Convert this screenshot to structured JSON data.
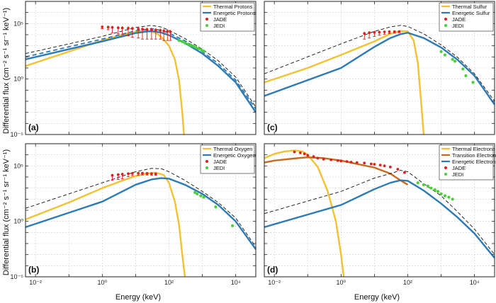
{
  "ylabel": "Differential flux (cm⁻² s⁻¹ sr⁻¹ keV⁻¹)",
  "xlabel": "Energy (keV)",
  "colors": {
    "thermal": "#f2c230",
    "energetic": "#2c7bb6",
    "transition": "#c8691e",
    "jade": "#e0201b",
    "jedi": "#46d234",
    "total": "#111111"
  },
  "chart_data": [
    {
      "type": "line",
      "panel_label": "(a)",
      "xlim": [
        0.005,
        40000
      ],
      "ylim": [
        1e-05,
        10000000
      ],
      "xscale": "log",
      "yscale": "log",
      "grid": true,
      "legend_position": "top-right",
      "x_tick_labels": [],
      "y_tick_labels": [
        {
          "value": 100000,
          "label": "10⁵"
        },
        {
          "value": 1,
          "label": "10⁰"
        },
        {
          "value": 1e-05,
          "label": "10⁻⁵"
        }
      ],
      "series": [
        {
          "name": "Thermal Protons",
          "kind": "thermal",
          "x": [
            0.005,
            0.1,
            1,
            5,
            10,
            20,
            40,
            60,
            100,
            150,
            200,
            250,
            280
          ],
          "y": [
            15,
            300,
            3000,
            12000,
            18000,
            22000,
            15000,
            6000,
            1000,
            60,
            0.8,
            0.001,
            1e-05
          ]
        },
        {
          "name": "Energetic Protons",
          "kind": "energetic",
          "x": [
            0.005,
            1,
            10,
            30,
            60,
            100,
            300,
            1000,
            3000,
            10000,
            40000
          ],
          "y": [
            60,
            2500,
            14000,
            22000,
            15000,
            9000,
            1800,
            200,
            15,
            0.5,
            0.001
          ]
        },
        {
          "name": "",
          "kind": "energetic-dashed",
          "x": [
            0.005,
            1,
            10,
            30,
            60,
            100,
            300,
            1000,
            3000,
            10000,
            40000
          ],
          "y": [
            100,
            4000,
            22000,
            35000,
            24000,
            14000,
            2800,
            300,
            25,
            0.8,
            0.002
          ]
        },
        {
          "name": "",
          "kind": "total",
          "x": [
            0.005,
            1,
            10,
            30,
            60,
            100,
            300,
            1000,
            3000,
            10000,
            40000
          ],
          "y": [
            200,
            7000,
            45000,
            70000,
            48000,
            25000,
            4500,
            500,
            45,
            1.5,
            0.003
          ]
        },
        {
          "name": "JADE",
          "kind": "jade",
          "x": [
            1,
            1.5,
            2,
            3,
            4,
            6,
            8,
            12,
            16,
            22,
            30,
            40,
            55,
            70,
            90,
            110
          ],
          "y": [
            50000,
            48000,
            45000,
            42000,
            40000,
            38000,
            36000,
            33000,
            31000,
            29000,
            28000,
            26000,
            24000,
            22000,
            20000,
            18000
          ],
          "err_low": [
            15000,
            20000,
            30000,
            30000,
            30000,
            30000,
            30000,
            28000,
            27000,
            25000,
            24000,
            22000,
            20000,
            19000,
            17000,
            15000
          ]
        },
        {
          "name": "JEDI",
          "kind": "jedi",
          "x": [
            200,
            250,
            300,
            380,
            450,
            550,
            650,
            800,
            950,
            1100
          ],
          "y": [
            3000,
            2400,
            1800,
            1400,
            1100,
            900,
            700,
            550,
            400,
            320
          ]
        }
      ]
    },
    {
      "type": "line",
      "panel_label": "(c)",
      "xlim": [
        0.005,
        40000
      ],
      "ylim": [
        1e-05,
        10000000
      ],
      "xscale": "log",
      "yscale": "log",
      "grid": true,
      "legend_position": "top-right",
      "x_tick_labels": [],
      "y_tick_labels": [],
      "series": [
        {
          "name": "Thermal Sulfur",
          "kind": "thermal",
          "x": [
            0.005,
            0.1,
            1,
            10,
            30,
            60,
            100,
            150,
            200,
            250,
            300
          ],
          "y": [
            0.5,
            10,
            150,
            2500,
            12000,
            22000,
            20000,
            3000,
            30,
            0.01,
            1e-05
          ]
        },
        {
          "name": "Energetic Sulfur",
          "kind": "energetic",
          "x": [
            0.005,
            1,
            10,
            30,
            60,
            100,
            300,
            1000,
            3000,
            10000,
            40000
          ],
          "y": [
            0.03,
            10,
            800,
            5000,
            11000,
            15000,
            5000,
            700,
            60,
            2,
            0.005
          ]
        },
        {
          "name": "",
          "kind": "total",
          "x": [
            0.005,
            1,
            10,
            30,
            60,
            100,
            300,
            1000,
            3000,
            10000,
            40000
          ],
          "y": [
            3,
            1500,
            20000,
            50000,
            70000,
            55000,
            12000,
            1200,
            100,
            3,
            0.01
          ]
        },
        {
          "name": "JADE",
          "kind": "jade",
          "x": [
            5,
            7,
            10,
            14,
            20,
            28,
            40,
            55
          ],
          "y": [
            13000,
            15000,
            16000,
            17000,
            18000,
            18500,
            19000,
            19000
          ],
          "err_low": [
            9000,
            10000,
            9000,
            8000,
            7000,
            6000,
            5000,
            4000
          ]
        },
        {
          "name": "JEDI",
          "kind": "jedi",
          "x": [
            1000,
            1300,
            2200,
            2600,
            4500,
            5500,
            9000
          ],
          "y": [
            300,
            150,
            60,
            40,
            8,
            2,
            0.5
          ]
        }
      ]
    },
    {
      "type": "line",
      "panel_label": "(b)",
      "xlim": [
        0.005,
        40000
      ],
      "ylim": [
        1e-05,
        10000000
      ],
      "xscale": "log",
      "yscale": "log",
      "grid": true,
      "legend_position": "top-right",
      "x_tick_labels": [
        {
          "value": 0.01,
          "label": "10⁻²"
        },
        {
          "value": 1,
          "label": "10⁰"
        },
        {
          "value": 100,
          "label": "10²"
        },
        {
          "value": 10000,
          "label": "10⁴"
        }
      ],
      "y_tick_labels": [
        {
          "value": 100000,
          "label": "10⁵"
        },
        {
          "value": 1,
          "label": "10⁰"
        },
        {
          "value": 1e-05,
          "label": "10⁻⁵"
        }
      ],
      "series": [
        {
          "name": "Thermal Oxygen",
          "kind": "thermal",
          "x": [
            0.005,
            0.1,
            1,
            5,
            10,
            20,
            40,
            70,
            100,
            150,
            200,
            250,
            300
          ],
          "y": [
            1.5,
            50,
            1000,
            6000,
            12000,
            20000,
            25000,
            15000,
            3000,
            60,
            0.5,
            0.001,
            1e-05
          ]
        },
        {
          "name": "Energetic Oxygen",
          "kind": "energetic",
          "x": [
            0.005,
            1,
            10,
            30,
            60,
            100,
            300,
            1000,
            3000,
            10000,
            40000
          ],
          "y": [
            0.3,
            60,
            2000,
            6000,
            8000,
            7000,
            2000,
            300,
            30,
            1,
            0.003
          ]
        },
        {
          "name": "",
          "kind": "total",
          "x": [
            0.005,
            1,
            10,
            30,
            60,
            100,
            300,
            1000,
            3000,
            10000,
            40000
          ],
          "y": [
            15,
            3000,
            30000,
            60000,
            55000,
            30000,
            5000,
            500,
            50,
            2,
            0.005
          ]
        },
        {
          "name": "JADE",
          "kind": "jade",
          "x": [
            2,
            3,
            4,
            6,
            8,
            12,
            16,
            22,
            30,
            40
          ],
          "y": [
            14000,
            16000,
            18000,
            20000,
            21000,
            22000,
            22000,
            21000,
            20000,
            19000
          ],
          "err_low": [
            9000,
            10000,
            11000,
            9000,
            8000,
            8000,
            7000,
            6000,
            6000,
            5000
          ]
        },
        {
          "name": "JEDI",
          "kind": "jedi",
          "x": [
            600,
            700,
            900,
            1100,
            2500,
            8000
          ],
          "y": [
            400,
            300,
            200,
            150,
            20,
            0.4
          ]
        }
      ]
    },
    {
      "type": "line",
      "panel_label": "(d)",
      "xlim": [
        0.005,
        40000
      ],
      "ylim": [
        1e-05,
        10000000
      ],
      "xscale": "log",
      "yscale": "log",
      "grid": true,
      "legend_position": "top-right",
      "x_tick_labels": [
        {
          "value": 0.01,
          "label": "10⁻²"
        },
        {
          "value": 1,
          "label": "10⁰"
        },
        {
          "value": 100,
          "label": "10²"
        },
        {
          "value": 10000,
          "label": "10⁴"
        }
      ],
      "y_tick_labels": [],
      "series": [
        {
          "name": "Thermal Electrons",
          "kind": "thermal",
          "x": [
            0.005,
            0.01,
            0.02,
            0.04,
            0.07,
            0.1,
            0.2,
            0.4,
            0.7,
            1,
            1.2
          ],
          "y": [
            500000,
            1200000,
            2000000,
            2500000,
            2000000,
            1000000,
            80000,
            500,
            1,
            0.001,
            1e-05
          ]
        },
        {
          "name": "Transition Electrons",
          "kind": "transition",
          "x": [
            0.005,
            0.01,
            0.05,
            0.1,
            0.3,
            1,
            3,
            10,
            30,
            60,
            100
          ],
          "y": [
            200000,
            300000,
            500000,
            600000,
            500000,
            300000,
            150000,
            70000,
            20000,
            5000,
            2000
          ]
        },
        {
          "name": "Energetic Electrons",
          "kind": "energetic",
          "x": [
            0.005,
            1,
            10,
            30,
            60,
            100,
            300,
            1000,
            3000,
            10000,
            40000
          ],
          "y": [
            0.3,
            30,
            800,
            3000,
            5000,
            4500,
            600,
            40,
            2.5,
            0.08,
            0.0005
          ]
        },
        {
          "name": "",
          "kind": "total",
          "x": [
            0.005,
            1,
            10,
            30,
            60,
            100,
            300,
            1000,
            3000,
            10000,
            40000
          ],
          "y": [
            5,
            500,
            8000,
            20000,
            40000,
            30000,
            2500,
            200,
            8,
            0.2,
            0.001
          ]
        },
        {
          "name": "JADE",
          "kind": "jade",
          "x": [
            0.04,
            0.06,
            0.08,
            0.1,
            0.15,
            0.2,
            0.3,
            0.5,
            0.8,
            1,
            1.5,
            2,
            3,
            5,
            8,
            10,
            15,
            20,
            30,
            50,
            80
          ],
          "y": [
            1800000,
            1500000,
            1200000,
            900000,
            700000,
            500000,
            400000,
            350000,
            300000,
            280000,
            250000,
            220000,
            200000,
            180000,
            150000,
            140000,
            120000,
            100000,
            80000,
            50000,
            25000
          ]
        },
        {
          "name": "JEDI",
          "kind": "jedi",
          "x": [
            200,
            300,
            400,
            500,
            650,
            800,
            1000,
            1300,
            1700,
            2200
          ],
          "y": [
            3000,
            2000,
            1500,
            1000,
            700,
            500,
            300,
            200,
            150,
            100
          ]
        }
      ]
    }
  ]
}
